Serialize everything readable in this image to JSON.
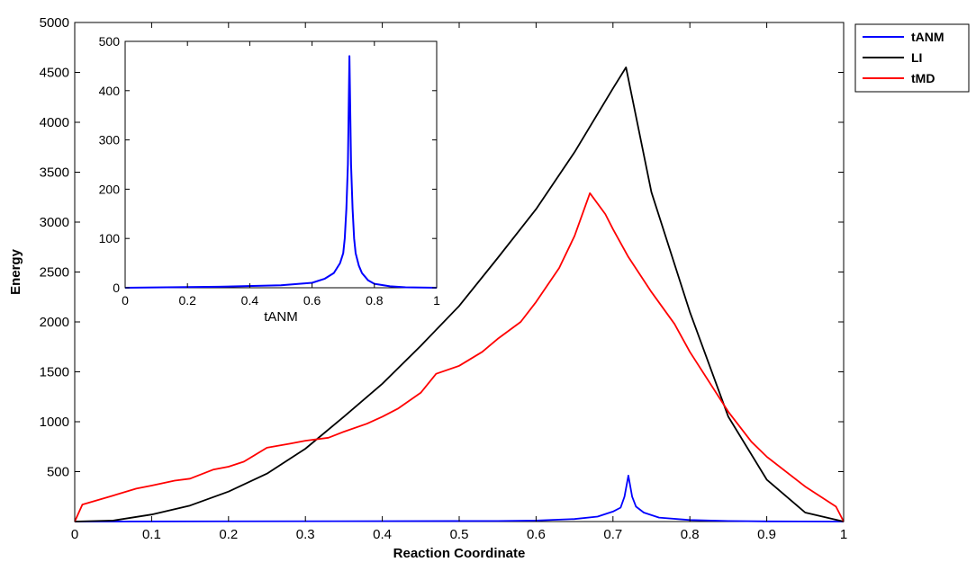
{
  "chart_data": [
    {
      "type": "line",
      "xlabel": "Reaction Coordinate",
      "ylabel": "Energy",
      "xlim": [
        0,
        1
      ],
      "ylim": [
        0,
        5000
      ],
      "x_ticks": [
        "0",
        "0.1",
        "0.2",
        "0.3",
        "0.4",
        "0.5",
        "0.6",
        "0.7",
        "0.8",
        "0.9",
        "1"
      ],
      "x_tick_values": [
        0,
        0.1,
        0.2,
        0.3,
        0.4,
        0.5,
        0.6,
        0.7,
        0.8,
        0.9,
        1
      ],
      "y_ticks": [
        "500",
        "1000",
        "1500",
        "2000",
        "2500",
        "3000",
        "3500",
        "4000",
        "4500",
        "5000"
      ],
      "y_tick_values": [
        500,
        1000,
        1500,
        2000,
        2500,
        3000,
        3500,
        4000,
        4500,
        5000
      ],
      "legend": {
        "placement": "outside-top-right"
      },
      "series": [
        {
          "name": "tANM",
          "color": "#0000ff",
          "x": [
            0,
            0.55,
            0.6,
            0.65,
            0.68,
            0.7,
            0.71,
            0.715,
            0.72,
            0.725,
            0.73,
            0.74,
            0.76,
            0.8,
            0.85,
            0.9,
            1
          ],
          "y": [
            0,
            5,
            10,
            25,
            50,
            100,
            140,
            250,
            460,
            250,
            150,
            90,
            40,
            15,
            5,
            2,
            0
          ]
        },
        {
          "name": "LI",
          "color": "#000000",
          "x": [
            0,
            0.05,
            0.1,
            0.15,
            0.2,
            0.25,
            0.3,
            0.35,
            0.4,
            0.45,
            0.5,
            0.55,
            0.6,
            0.65,
            0.7,
            0.717,
            0.75,
            0.8,
            0.85,
            0.9,
            0.95,
            1
          ],
          "y": [
            0,
            10,
            70,
            160,
            300,
            480,
            730,
            1050,
            1380,
            1760,
            2160,
            2640,
            3130,
            3700,
            4340,
            4550,
            3300,
            2100,
            1050,
            420,
            90,
            0
          ]
        },
        {
          "name": "tMD",
          "color": "#ff0000",
          "x": [
            0,
            0.01,
            0.05,
            0.08,
            0.1,
            0.13,
            0.15,
            0.18,
            0.2,
            0.22,
            0.25,
            0.28,
            0.3,
            0.33,
            0.35,
            0.38,
            0.4,
            0.42,
            0.45,
            0.47,
            0.5,
            0.53,
            0.55,
            0.58,
            0.6,
            0.63,
            0.65,
            0.67,
            0.69,
            0.7,
            0.72,
            0.75,
            0.78,
            0.8,
            0.85,
            0.88,
            0.9,
            0.95,
            0.99,
            1
          ],
          "y": [
            0,
            170,
            260,
            330,
            360,
            410,
            430,
            520,
            550,
            600,
            740,
            780,
            810,
            840,
            900,
            980,
            1050,
            1130,
            1290,
            1480,
            1560,
            1700,
            1830,
            2000,
            2200,
            2540,
            2860,
            3290,
            3080,
            2930,
            2650,
            2300,
            1980,
            1700,
            1100,
            800,
            650,
            350,
            150,
            0
          ]
        }
      ]
    },
    {
      "type": "line",
      "xlabel": "tANM",
      "ylabel": "",
      "xlim": [
        0,
        1
      ],
      "ylim": [
        0,
        500
      ],
      "x_ticks": [
        "0",
        "0.2",
        "0.4",
        "0.6",
        "0.8",
        "1"
      ],
      "x_tick_values": [
        0,
        0.2,
        0.4,
        0.6,
        0.8,
        1
      ],
      "y_ticks": [
        "0",
        "100",
        "200",
        "300",
        "400",
        "500"
      ],
      "y_tick_values": [
        0,
        100,
        200,
        300,
        400,
        500
      ],
      "series": [
        {
          "color": "#0000ff",
          "x": [
            0,
            0.3,
            0.5,
            0.6,
            0.64,
            0.67,
            0.69,
            0.7,
            0.705,
            0.71,
            0.715,
            0.72,
            0.725,
            0.73,
            0.735,
            0.74,
            0.75,
            0.76,
            0.78,
            0.8,
            0.85,
            0.9,
            1
          ],
          "y": [
            0,
            2,
            5,
            10,
            18,
            30,
            50,
            70,
            100,
            160,
            250,
            470,
            250,
            160,
            100,
            70,
            45,
            30,
            15,
            8,
            3,
            1,
            0
          ]
        }
      ]
    }
  ]
}
